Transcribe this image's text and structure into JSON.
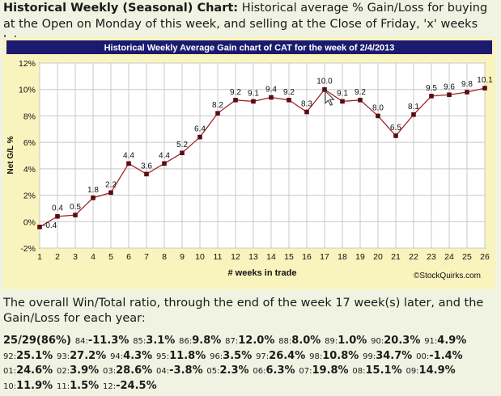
{
  "header": {
    "title": "Historical Weekly (Seasonal) Chart:",
    "description": "Historical average % Gain/Loss for buying at the Open on Monday of this week, and selling at the Close of Friday, 'x' weeks later:"
  },
  "chart_data": {
    "type": "line",
    "title": "Historical Weekly Average Gain chart of CAT for the week of 2/4/2013",
    "xlabel": "# weeks in trade",
    "ylabel": "Net G/L %",
    "x": [
      1,
      2,
      3,
      4,
      5,
      6,
      7,
      8,
      9,
      10,
      11,
      12,
      13,
      14,
      15,
      16,
      17,
      18,
      19,
      20,
      21,
      22,
      23,
      24,
      25,
      26
    ],
    "values": [
      -0.4,
      0.4,
      0.5,
      1.8,
      2.2,
      4.4,
      3.6,
      4.4,
      5.2,
      6.4,
      8.2,
      9.2,
      9.1,
      9.4,
      9.2,
      8.3,
      10.0,
      9.1,
      9.2,
      8.0,
      6.5,
      8.1,
      9.5,
      9.6,
      9.8,
      10.1
    ],
    "labels": [
      "-0.4",
      "0.4",
      "0.5",
      "1.8",
      "2.2",
      "4.4",
      "3.6",
      "4.4",
      "5.2",
      "6.4",
      "8.2",
      "9.2",
      "9.1",
      "9.4",
      "9.2",
      "8.3",
      "10.0",
      "9.1",
      "9.2",
      "8.0",
      "6.5",
      "8.1",
      "9.5",
      "9.6",
      "9.8",
      "10.1"
    ],
    "y_ticks": [
      "-2%",
      "0%",
      "2%",
      "4%",
      "6%",
      "8%",
      "10%",
      "12%"
    ],
    "ylim": [
      -2,
      12
    ],
    "grid": true,
    "watermark": "©StockQuirks.com",
    "colors": {
      "line": "#a0282a",
      "marker": "#5a0c10",
      "title_bg": "#1c1a6e",
      "frame_bg": "#f9f3be",
      "grid": "#c8c8c8"
    }
  },
  "summary": {
    "text": "The overall Win/Total ratio, through the end of the week 17 week(s) later, and the Gain/Loss for each year:"
  },
  "years": {
    "ratio": "25/29(86%)",
    "items": [
      {
        "year": "84:",
        "value": "-11.3%"
      },
      {
        "year": "85:",
        "value": "3.1%"
      },
      {
        "year": "86:",
        "value": "9.8%"
      },
      {
        "year": "87:",
        "value": "12.0%"
      },
      {
        "year": "88:",
        "value": "8.0%"
      },
      {
        "year": "89:",
        "value": "1.0%"
      },
      {
        "year": "90:",
        "value": "20.3%"
      },
      {
        "year": "91:",
        "value": "4.9%"
      },
      {
        "year": "92:",
        "value": "25.1%"
      },
      {
        "year": "93:",
        "value": "27.2%"
      },
      {
        "year": "94:",
        "value": "4.3%"
      },
      {
        "year": "95:",
        "value": "11.8%"
      },
      {
        "year": "96:",
        "value": "3.5%"
      },
      {
        "year": "97:",
        "value": "26.4%"
      },
      {
        "year": "98:",
        "value": "10.8%"
      },
      {
        "year": "99:",
        "value": "34.7%"
      },
      {
        "year": "00:",
        "value": "-1.4%"
      },
      {
        "year": "01:",
        "value": "24.6%"
      },
      {
        "year": "02:",
        "value": "3.9%"
      },
      {
        "year": "03:",
        "value": "28.6%"
      },
      {
        "year": "04:",
        "value": "-3.8%"
      },
      {
        "year": "05:",
        "value": "2.3%"
      },
      {
        "year": "06:",
        "value": "6.3%"
      },
      {
        "year": "07:",
        "value": "19.8%"
      },
      {
        "year": "08:",
        "value": "15.1%"
      },
      {
        "year": "09:",
        "value": "14.9%"
      },
      {
        "year": "10:",
        "value": "11.9%"
      },
      {
        "year": "11:",
        "value": "1.5%"
      },
      {
        "year": "12:",
        "value": "-24.5%"
      }
    ]
  }
}
